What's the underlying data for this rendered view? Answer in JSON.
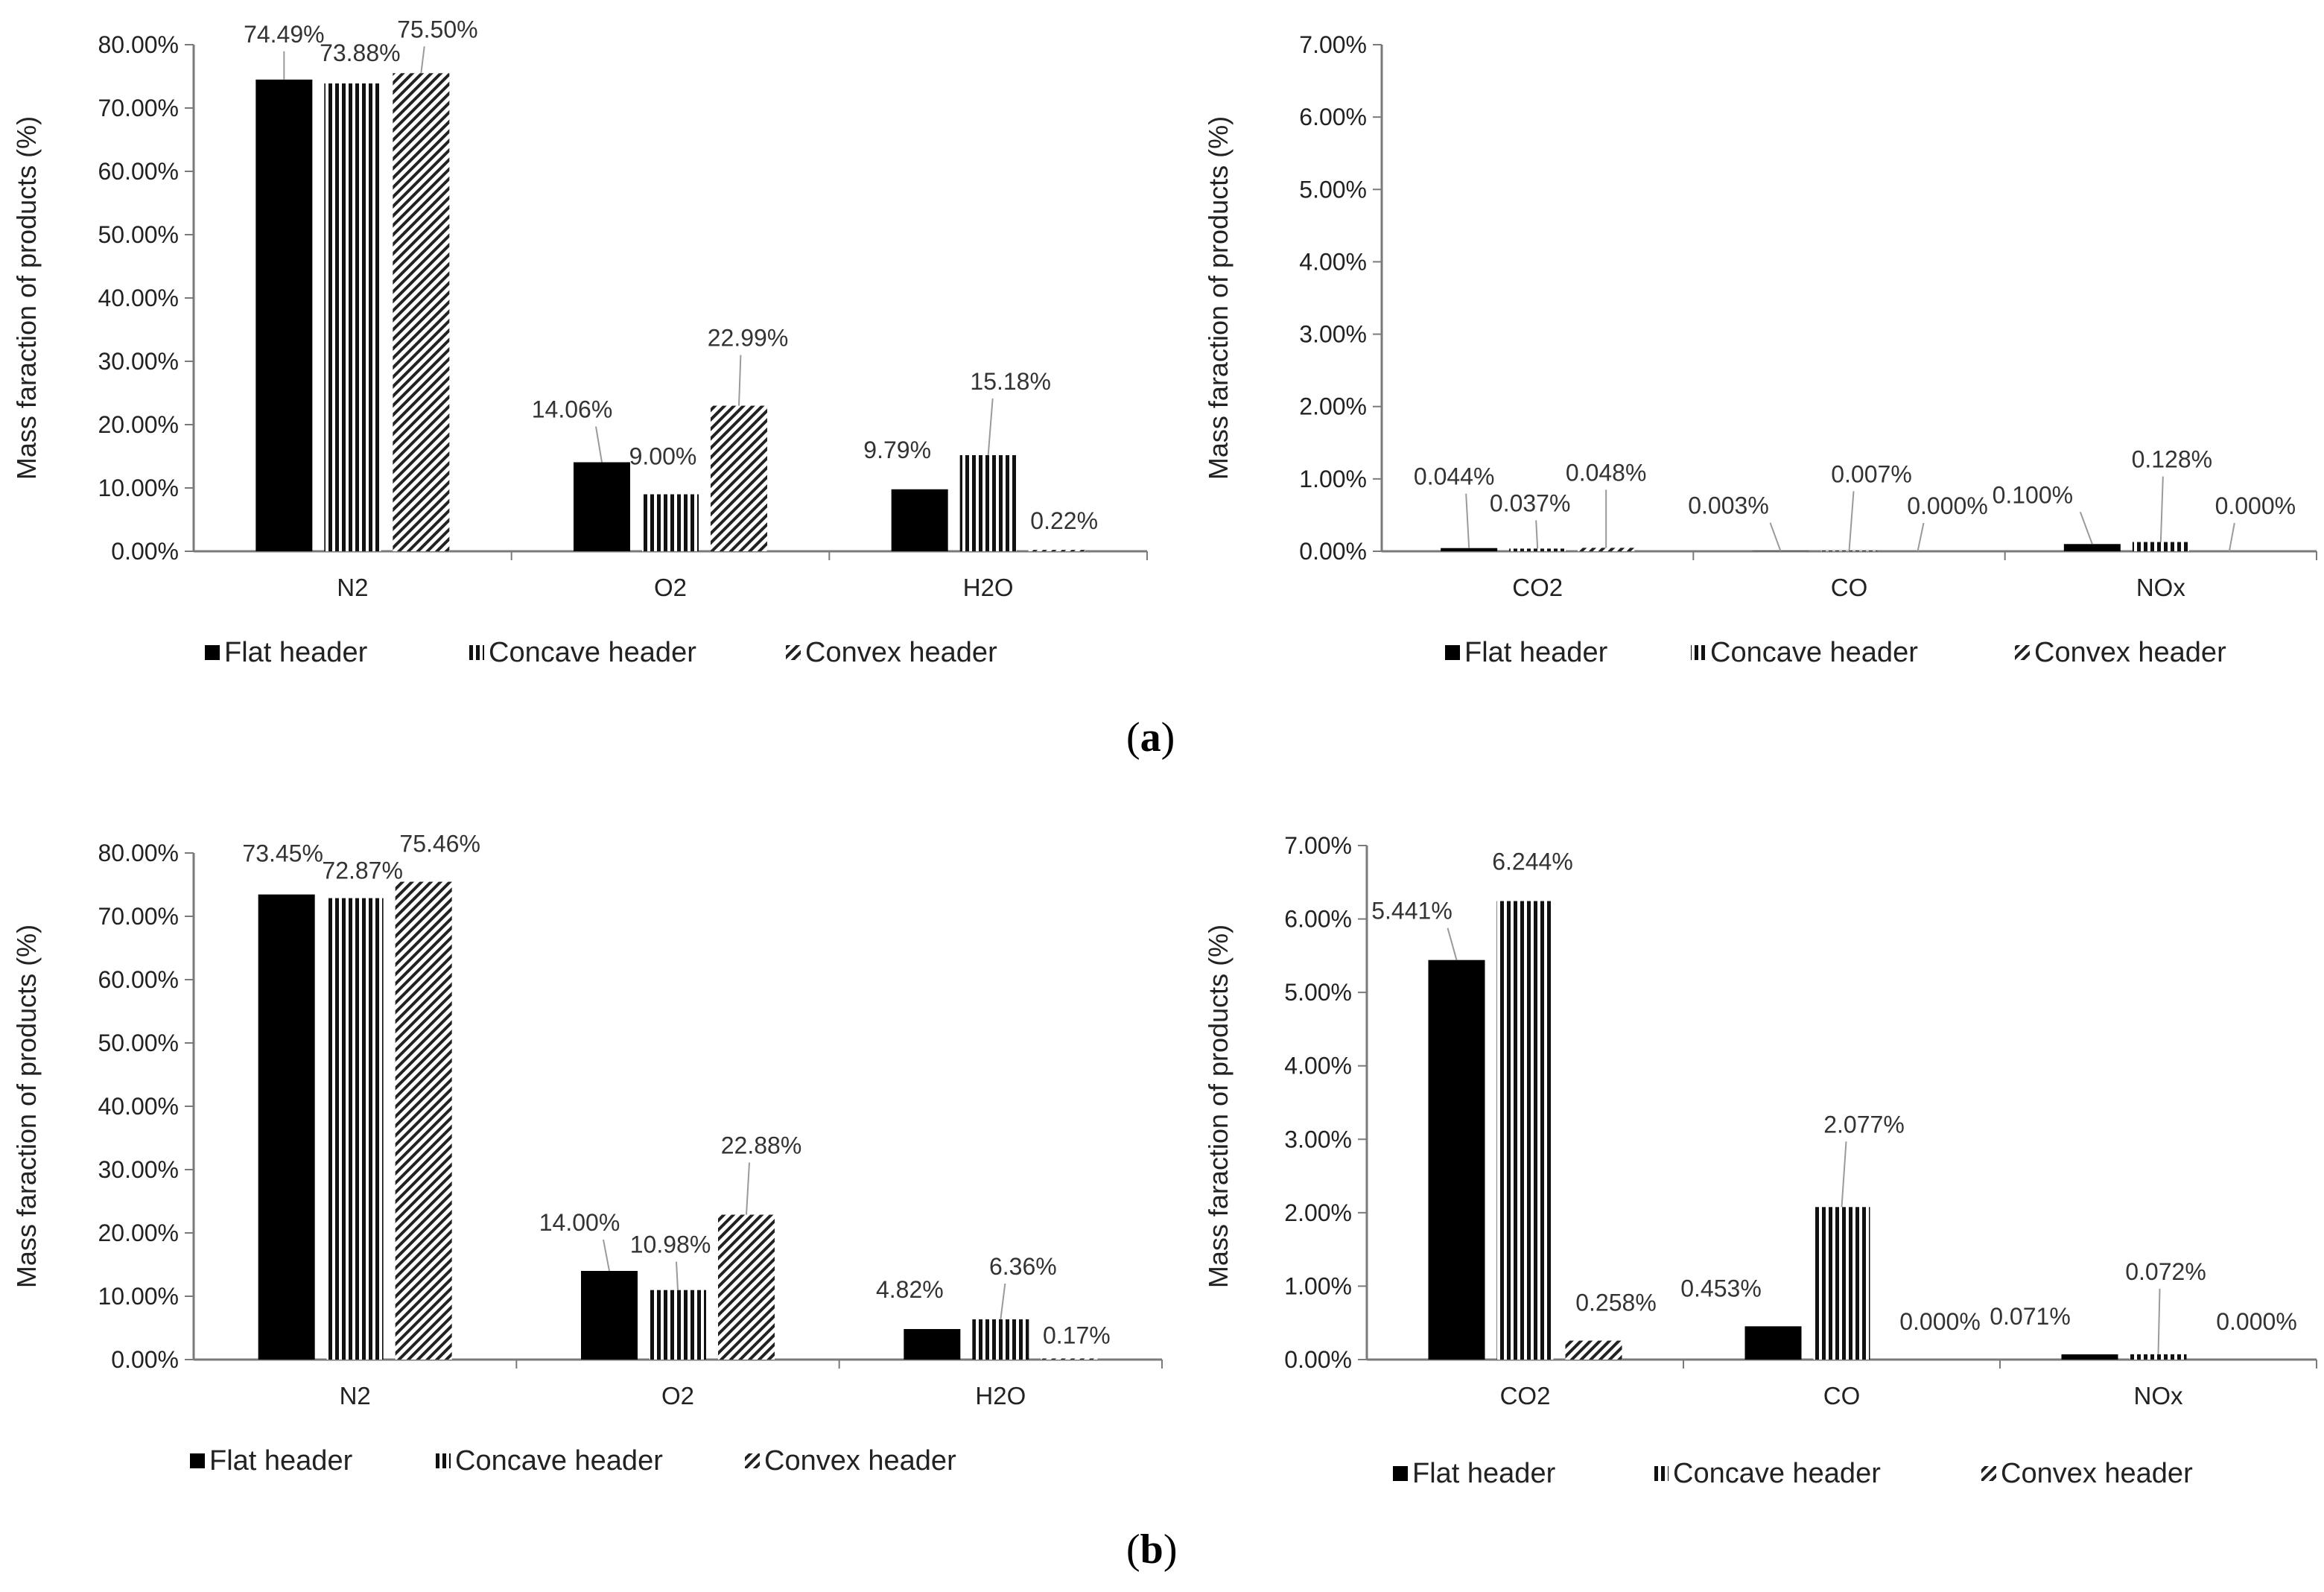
{
  "panel_labels": [
    "a",
    "b"
  ],
  "chart_data": [
    {
      "id": "a-left",
      "type": "bar",
      "title": "",
      "xlabel": "",
      "ylabel": "Mass faraction of products (%)",
      "ylim": [
        0,
        0.8
      ],
      "yticks": [
        "0.00%",
        "10.00%",
        "20.00%",
        "30.00%",
        "40.00%",
        "50.00%",
        "60.00%",
        "70.00%",
        "80.00%"
      ],
      "categories": [
        "N2",
        "O2",
        "H2O"
      ],
      "series": [
        {
          "name": "Flat header",
          "pattern": "solid",
          "values": [
            0.7449,
            0.1406,
            0.0979
          ],
          "labels": [
            "74.49%",
            "14.06%",
            "9.79%"
          ]
        },
        {
          "name": "Concave header",
          "pattern": "vertical",
          "values": [
            0.7388,
            0.09,
            0.1518
          ],
          "labels": [
            "73.88%",
            "9.00%",
            "15.18%"
          ]
        },
        {
          "name": "Convex header",
          "pattern": "diagonal",
          "values": [
            0.755,
            0.2299,
            0.0022
          ],
          "labels": [
            "75.50%",
            "22.99%",
            "0.22%"
          ]
        }
      ],
      "legend": [
        "Flat header",
        "Concave header",
        "Convex header"
      ]
    },
    {
      "id": "a-right",
      "type": "bar",
      "title": "",
      "xlabel": "",
      "ylabel": "Mass faraction of products (%)",
      "ylim": [
        0,
        0.07
      ],
      "yticks": [
        "0.00%",
        "1.00%",
        "2.00%",
        "3.00%",
        "4.00%",
        "5.00%",
        "6.00%",
        "7.00%"
      ],
      "categories": [
        "CO2",
        "CO",
        "NOx"
      ],
      "series": [
        {
          "name": "Flat header",
          "pattern": "solid",
          "values": [
            0.00044,
            3e-05,
            0.001
          ],
          "labels": [
            "0.044%",
            "0.003%",
            "0.100%"
          ]
        },
        {
          "name": "Concave header",
          "pattern": "vertical",
          "values": [
            0.00037,
            7e-05,
            0.00128
          ],
          "labels": [
            "0.037%",
            "0.007%",
            "0.128%"
          ]
        },
        {
          "name": "Convex header",
          "pattern": "diagonal",
          "values": [
            0.00048,
            0.0,
            0.0
          ],
          "labels": [
            "0.048%",
            "0.000%",
            "0.000%"
          ]
        }
      ],
      "legend": [
        "Flat header",
        "Concave header",
        "Convex header"
      ]
    },
    {
      "id": "b-left",
      "type": "bar",
      "title": "",
      "xlabel": "",
      "ylabel": "Mass faraction of products (%)",
      "ylim": [
        0,
        0.8
      ],
      "yticks": [
        "0.00%",
        "10.00%",
        "20.00%",
        "30.00%",
        "40.00%",
        "50.00%",
        "60.00%",
        "70.00%",
        "80.00%"
      ],
      "categories": [
        "N2",
        "O2",
        "H2O"
      ],
      "series": [
        {
          "name": "Flat header",
          "pattern": "solid",
          "values": [
            0.7345,
            0.14,
            0.0482
          ],
          "labels": [
            "73.45%",
            "14.00%",
            "4.82%"
          ]
        },
        {
          "name": "Concave header",
          "pattern": "vertical",
          "values": [
            0.7287,
            0.1098,
            0.0636
          ],
          "labels": [
            "72.87%",
            "10.98%",
            "6.36%"
          ]
        },
        {
          "name": "Convex header",
          "pattern": "diagonal",
          "values": [
            0.7546,
            0.2288,
            0.0017
          ],
          "labels": [
            "75.46%",
            "22.88%",
            "0.17%"
          ]
        }
      ],
      "legend": [
        "Flat header",
        "Concave header",
        "Convex header"
      ]
    },
    {
      "id": "b-right",
      "type": "bar",
      "title": "",
      "xlabel": "",
      "ylabel": "Mass faraction of products (%)",
      "ylim": [
        0,
        0.07
      ],
      "yticks": [
        "0.00%",
        "1.00%",
        "2.00%",
        "3.00%",
        "4.00%",
        "5.00%",
        "6.00%",
        "7.00%"
      ],
      "categories": [
        "CO2",
        "CO",
        "NOx"
      ],
      "series": [
        {
          "name": "Flat header",
          "pattern": "solid",
          "values": [
            0.05441,
            0.00453,
            0.00071
          ],
          "labels": [
            "5.441%",
            "0.453%",
            "0.071%"
          ]
        },
        {
          "name": "Concave header",
          "pattern": "vertical",
          "values": [
            0.06244,
            0.02077,
            0.00072
          ],
          "labels": [
            "6.244%",
            "2.077%",
            "0.072%"
          ]
        },
        {
          "name": "Convex header",
          "pattern": "diagonal",
          "values": [
            0.00258,
            0.0,
            0.0
          ],
          "labels": [
            "0.258%",
            "0.000%",
            "0.000%"
          ]
        }
      ],
      "legend": [
        "Flat header",
        "Concave header",
        "Convex header"
      ]
    }
  ]
}
